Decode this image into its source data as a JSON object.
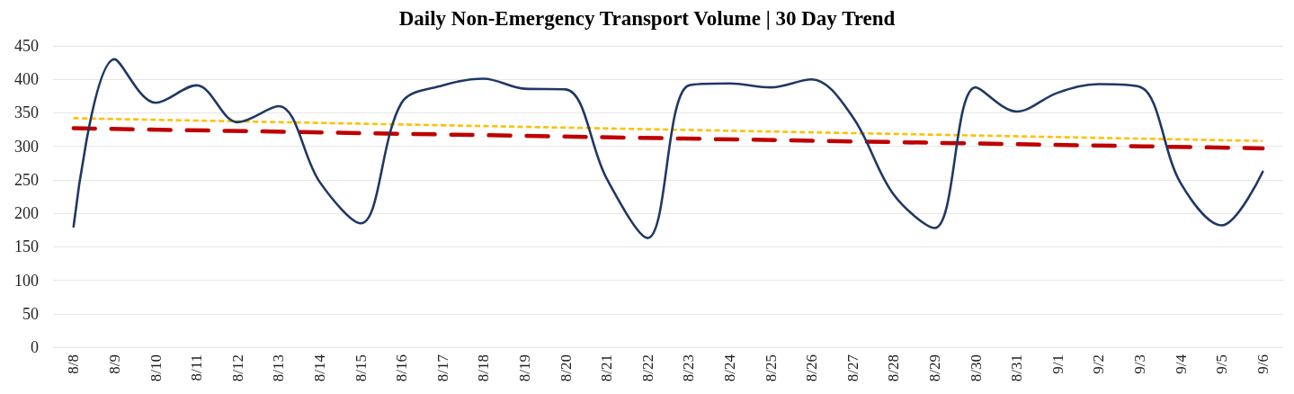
{
  "chart_data": {
    "type": "line",
    "title": "Daily Non-Emergency Transport Volume | 30 Day Trend",
    "categories": [
      "8/8",
      "8/9",
      "8/10",
      "8/11",
      "8/12",
      "8/13",
      "8/14",
      "8/15",
      "8/16",
      "8/17",
      "8/18",
      "8/19",
      "8/20",
      "8/21",
      "8/22",
      "8/23",
      "8/24",
      "8/25",
      "8/26",
      "8/27",
      "8/28",
      "8/29",
      "8/30",
      "8/31",
      "9/1",
      "9/2",
      "9/3",
      "9/4",
      "9/5",
      "9/6"
    ],
    "series": [
      {
        "color": "#203864",
        "values": [
          180,
          430,
          365,
          391,
          336,
          360,
          247,
          185,
          365,
          391,
          401,
          386,
          385,
          252,
          163,
          391,
          394,
          388,
          400,
          344,
          228,
          178,
          388,
          352,
          380,
          393,
          389,
          245,
          182,
          262
        ]
      },
      {
        "color": "#ffc000",
        "x": [
          "8/8",
          "9/6"
        ],
        "values": [
          342,
          308
        ],
        "line_style": "dotted"
      },
      {
        "color": "#c00000",
        "x": [
          "8/8",
          "9/6"
        ],
        "values": [
          327,
          297
        ],
        "line_style": "dashed"
      }
    ],
    "ylim": [
      0,
      450
    ],
    "yticks": [
      0,
      50,
      100,
      150,
      200,
      250,
      300,
      350,
      400,
      450
    ],
    "grid": "y"
  }
}
